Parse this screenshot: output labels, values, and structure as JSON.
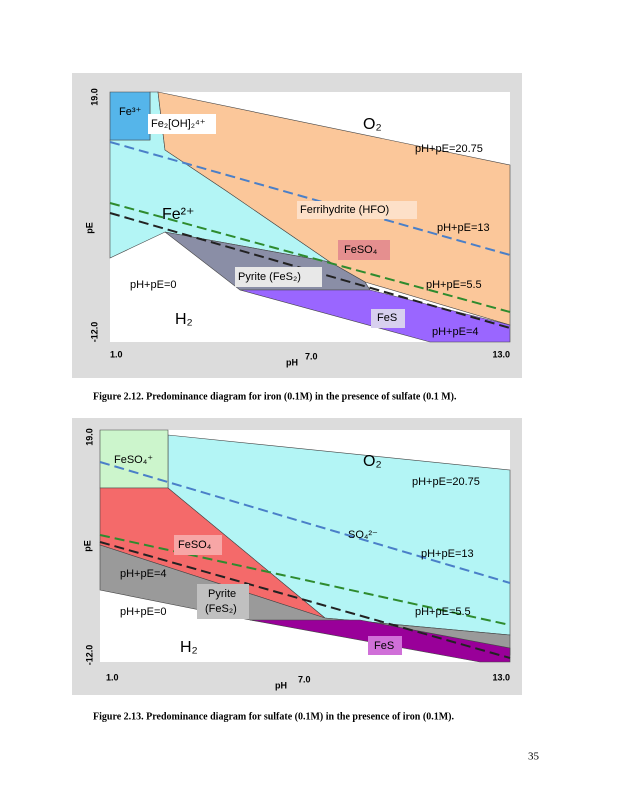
{
  "figures": [
    {
      "axis": {
        "y_top": "19.0",
        "y_bottom": "-12.0",
        "y_label": "pE",
        "x_left": "1.0",
        "x_mid": "7.0",
        "x_right": "13.0",
        "x_label": "pH"
      },
      "labels": [
        "Fe³⁺",
        "Fe₂[OH]₂⁴⁺",
        "O₂",
        "pH+pE=20.75",
        "Fe²⁺",
        "Ferrihydrite (HFO)",
        "pH+pE=13",
        "FeSO₄",
        "Pyrite (FeS₂)",
        "pH+pE=0",
        "pH+pE=5.5",
        "H₂",
        "FeS",
        "pH+pE=4"
      ],
      "caption": "Figure 2.12.  Predominance diagram for iron (0.1M) in the presence of sulfate (0.1 M)."
    },
    {
      "axis": {
        "y_top": "19.0",
        "y_bottom": "-12.0",
        "y_label": "pE",
        "x_left": "1.0",
        "x_mid": "7.0",
        "x_right": "13.0",
        "x_label": "pH"
      },
      "labels": [
        "FeSO₄⁺",
        "O₂",
        "pH+pE=20.75",
        "SO₄²⁻",
        "FeSO₄",
        "pH+pE=13",
        "pH+pE=4",
        "Pyrite",
        "(FeS₂)",
        "pH+pE=0",
        "pH+pE=5.5",
        "H₂",
        "FeS"
      ],
      "caption": "Figure 2.13.  Predominance diagram for sulfate (0.1M) in the presence of iron (0.1M)."
    }
  ],
  "page_number": "35"
}
